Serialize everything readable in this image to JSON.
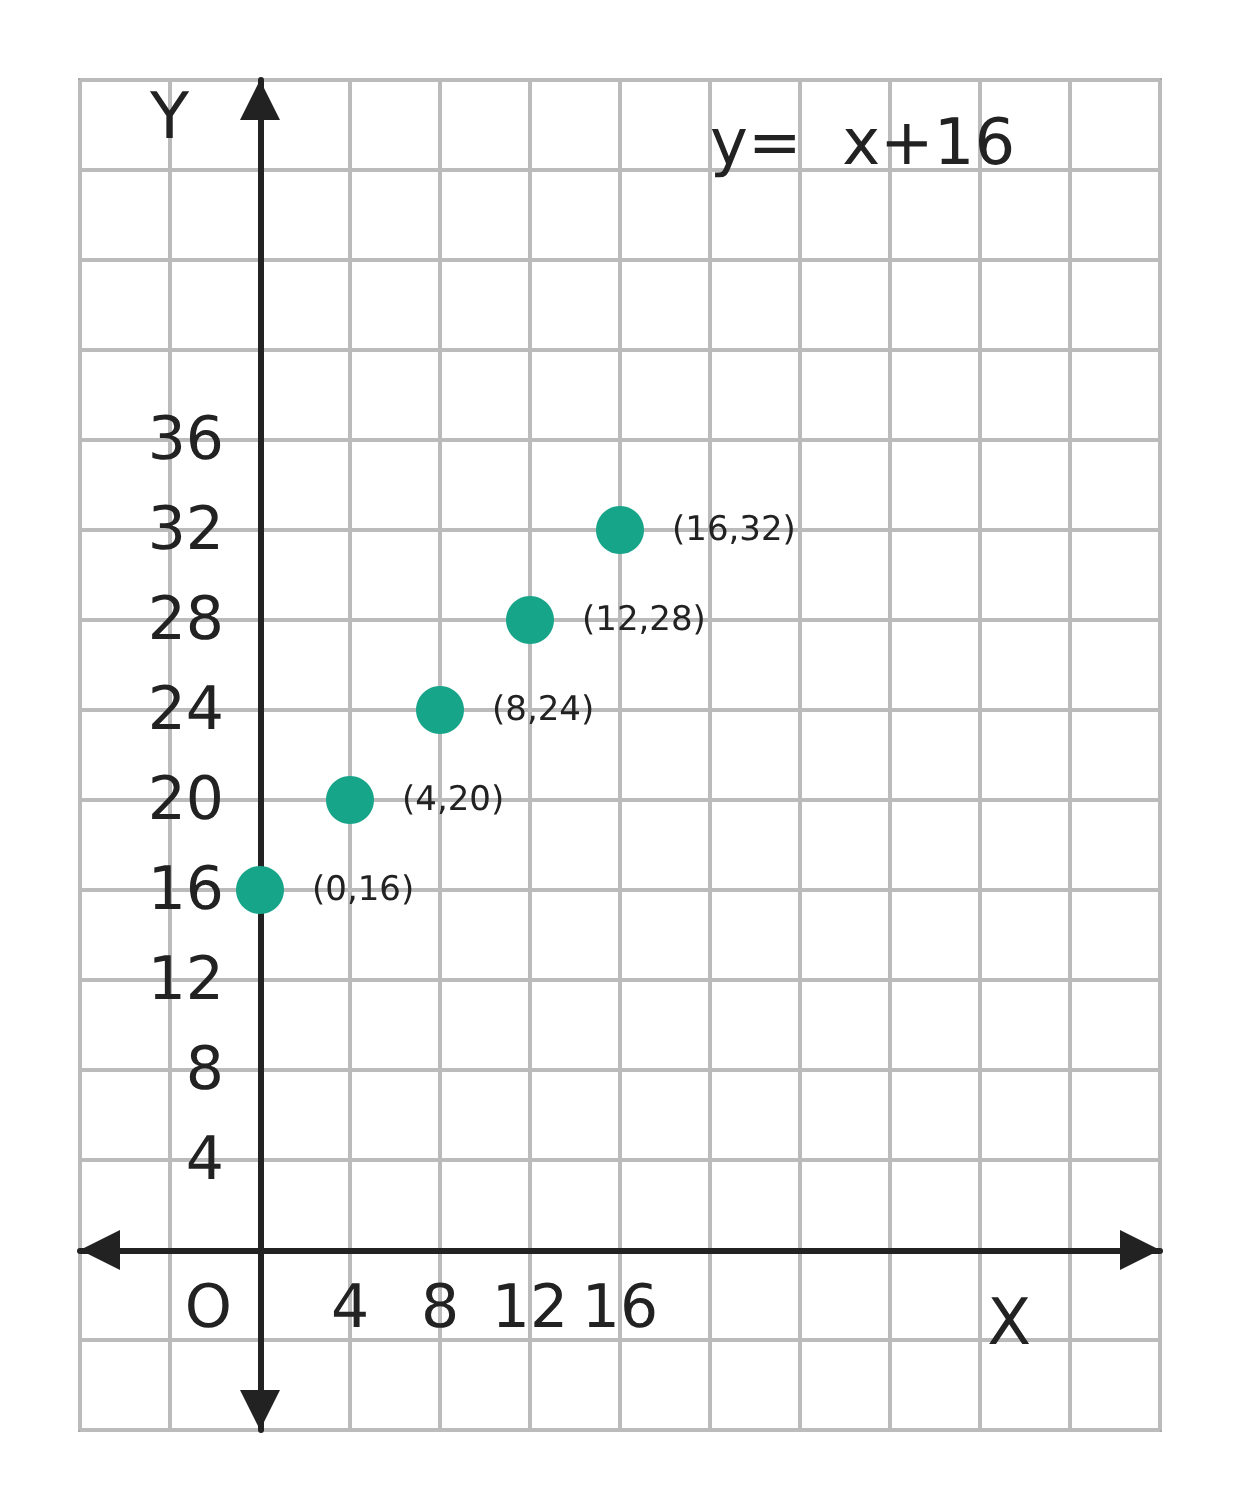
{
  "chart_data": {
    "type": "scatter",
    "title": "y=  x+16",
    "xlabel": "X",
    "ylabel": "Y",
    "x": [
      0,
      4,
      8,
      12,
      16
    ],
    "series": [
      {
        "color": "#17a589",
        "values": [
          16,
          20,
          24,
          28,
          32
        ]
      }
    ],
    "xlim": [
      -8,
      40
    ],
    "xticks": [
      4,
      8,
      12,
      16
    ],
    "ylim": [
      -8,
      52
    ],
    "yticks": [
      4,
      8,
      12,
      16,
      20,
      24,
      28,
      32,
      36
    ],
    "annotations": [
      "O",
      {
        "text": "(0,16)",
        "x": 0,
        "y": 16
      },
      {
        "text": "(4,20)",
        "x": 4,
        "y": 20
      },
      {
        "text": "(8,24)",
        "x": 8,
        "y": 24
      },
      {
        "text": "(12,28)",
        "x": 12,
        "y": 28
      },
      {
        "text": "(16,32)",
        "x": 16,
        "y": 32
      }
    ],
    "grid": true,
    "marker": "circle"
  }
}
